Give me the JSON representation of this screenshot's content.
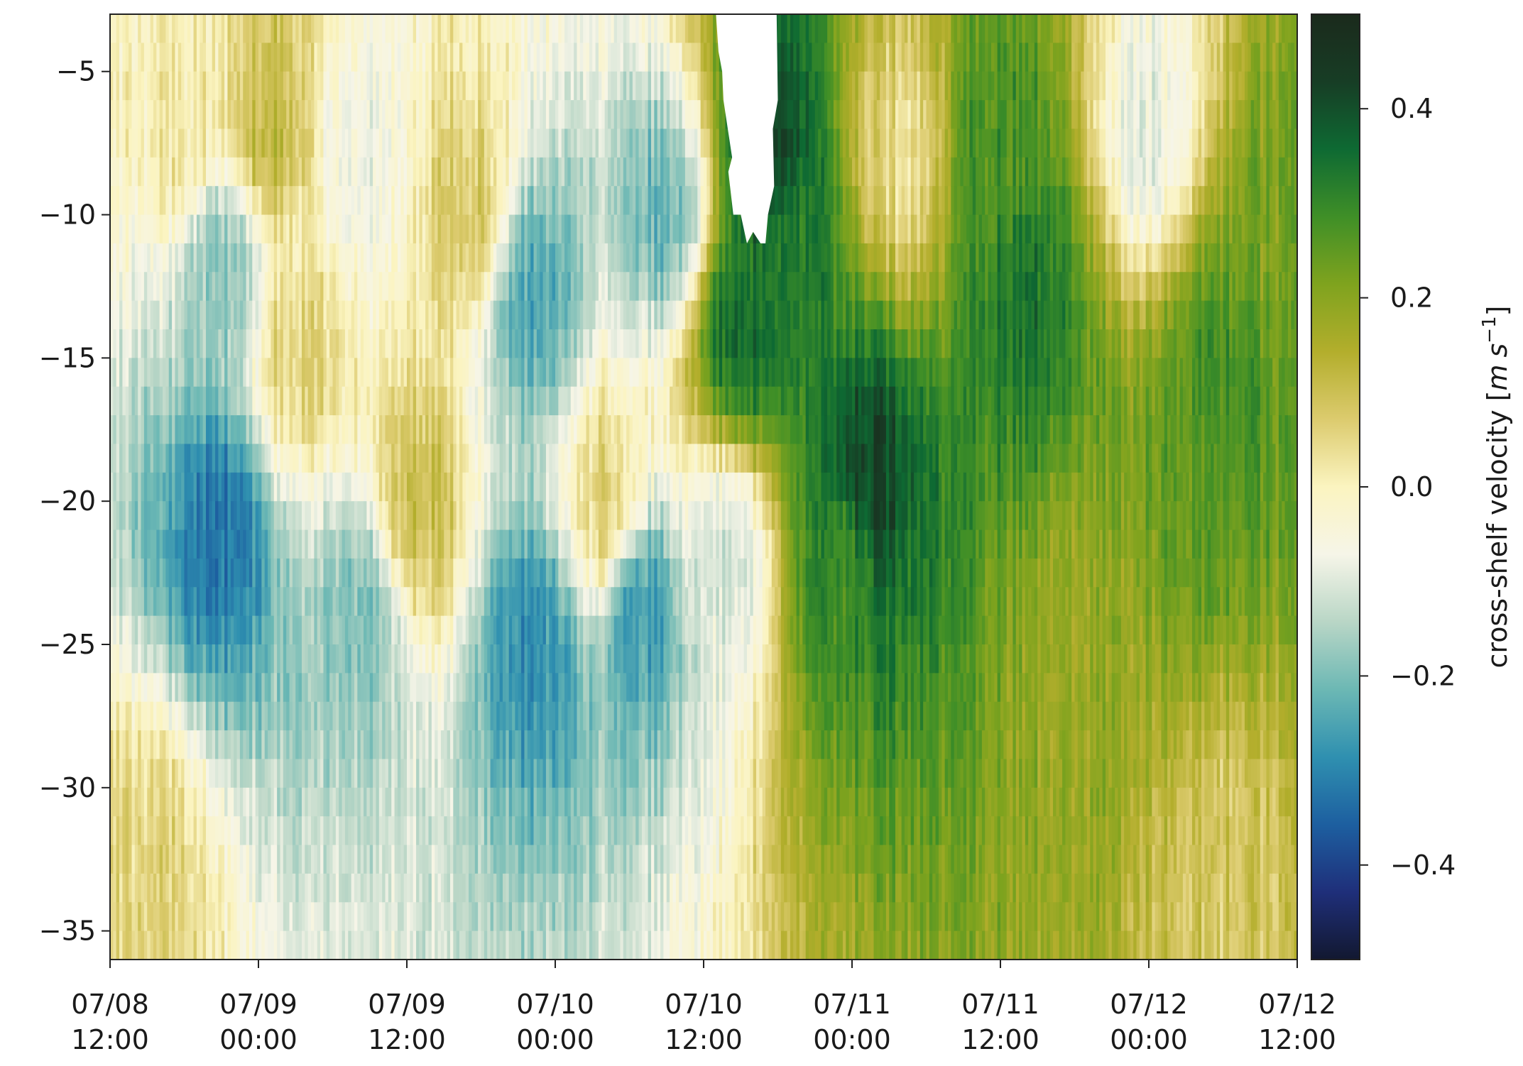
{
  "chart_data": {
    "type": "heatmap",
    "title": "",
    "xlabel": "",
    "ylabel": "",
    "x_range": [
      "07/08 12:00",
      "07/12 12:00"
    ],
    "y_range": [
      -36,
      -3
    ],
    "x_ticks": [
      {
        "line1": "07/08",
        "line2": "12:00",
        "hours": 0
      },
      {
        "line1": "07/09",
        "line2": "00:00",
        "hours": 12
      },
      {
        "line1": "07/09",
        "line2": "12:00",
        "hours": 24
      },
      {
        "line1": "07/10",
        "line2": "00:00",
        "hours": 36
      },
      {
        "line1": "07/10",
        "line2": "12:00",
        "hours": 48
      },
      {
        "line1": "07/11",
        "line2": "00:00",
        "hours": 60
      },
      {
        "line1": "07/11",
        "line2": "12:00",
        "hours": 72
      },
      {
        "line1": "07/12",
        "line2": "00:00",
        "hours": 84
      },
      {
        "line1": "07/12",
        "line2": "12:00",
        "hours": 96
      }
    ],
    "y_ticks": [
      -5,
      -10,
      -15,
      -20,
      -25,
      -30,
      -35
    ],
    "y_tick_labels": [
      "−5",
      "−10",
      "−15",
      "−20",
      "−25",
      "−30",
      "−35"
    ],
    "colorbar": {
      "label_main": "cross-shelf velocity [",
      "label_unit_m": "m",
      "label_unit_s": "s",
      "label_exponent": "−1",
      "label_close": "]",
      "range": [
        -0.5,
        0.5
      ],
      "ticks": [
        0.4,
        0.2,
        0.0,
        -0.2,
        -0.4
      ],
      "tick_labels": [
        "0.4",
        "0.2",
        "0.0",
        "−0.2",
        "−0.4"
      ],
      "colormap": [
        "#121830",
        "#1f2f7a",
        "#1d5fa0",
        "#2f90b0",
        "#6cb8b4",
        "#b9d6c6",
        "#f6f5e8",
        "#fbf4c0",
        "#dccb6e",
        "#b3ae2c",
        "#7fa31e",
        "#3f8f27",
        "#0e6a33",
        "#173d25",
        "#1b2a1c"
      ]
    },
    "cells_hours_depth_value": [
      [
        3,
        -33,
        0.06
      ],
      [
        9,
        -21,
        -0.32
      ],
      [
        9,
        -12,
        -0.18
      ],
      [
        6,
        -7,
        0.02
      ],
      [
        13,
        -7,
        0.12
      ],
      [
        15,
        -15,
        0.06
      ],
      [
        20,
        -24,
        -0.2
      ],
      [
        20,
        -8,
        -0.08
      ],
      [
        25,
        -20,
        0.1
      ],
      [
        29,
        -10,
        0.08
      ],
      [
        34,
        -25,
        -0.28
      ],
      [
        34,
        -13,
        -0.24
      ],
      [
        40,
        -20,
        0.06
      ],
      [
        43,
        -24,
        -0.26
      ],
      [
        45,
        -10,
        -0.22
      ],
      [
        50,
        -22,
        -0.1
      ],
      [
        51,
        -14,
        0.36
      ],
      [
        53,
        -8,
        0.42
      ],
      [
        55,
        -11,
        0.32
      ],
      [
        59,
        -22,
        0.3
      ],
      [
        61,
        -19,
        0.42
      ],
      [
        64,
        -8,
        0.04
      ],
      [
        72,
        -8,
        0.28
      ],
      [
        74,
        -13,
        0.34
      ],
      [
        79,
        -25,
        0.18
      ],
      [
        84,
        -7,
        -0.08
      ],
      [
        87,
        -19,
        0.24
      ],
      [
        90,
        -16,
        0.28
      ],
      [
        94,
        -11,
        0.22
      ],
      [
        90,
        -33,
        0.08
      ]
    ]
  }
}
